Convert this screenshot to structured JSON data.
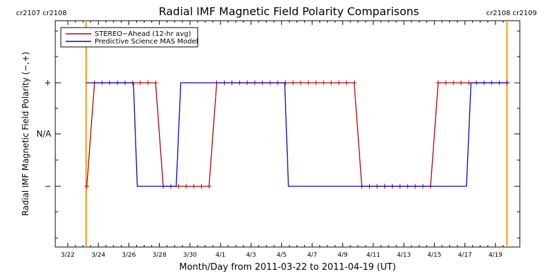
{
  "chart_data": {
    "type": "line",
    "title": "Radial IMF Magnetic Field Polarity Comparisons",
    "xlabel": "Month/Day from 2011-03-22 to 2011-04-19 (UT)",
    "ylabel": "Radial IMF Magnetic Field Polarity (−,+)",
    "x_range_days": [
      0,
      28.5
    ],
    "x_ticks": [
      {
        "day": 0,
        "label": "3/22"
      },
      {
        "day": 2,
        "label": "3/24"
      },
      {
        "day": 4,
        "label": "3/26"
      },
      {
        "day": 6,
        "label": "3/28"
      },
      {
        "day": 8,
        "label": "3/30"
      },
      {
        "day": 10,
        "label": "4/1"
      },
      {
        "day": 12,
        "label": "4/3"
      },
      {
        "day": 14,
        "label": "4/5"
      },
      {
        "day": 16,
        "label": "4/7"
      },
      {
        "day": 18,
        "label": "4/9"
      },
      {
        "day": 20,
        "label": "4/11"
      },
      {
        "day": 22,
        "label": "4/13"
      },
      {
        "day": 24,
        "label": "4/15"
      },
      {
        "day": 26,
        "label": "4/17"
      },
      {
        "day": 28,
        "label": "4/19"
      }
    ],
    "y_range": [
      -2,
      2
    ],
    "y_ticks": [
      {
        "value": 1,
        "label": "+"
      },
      {
        "value": 0,
        "label": "N/A"
      },
      {
        "value": -1,
        "label": "−"
      }
    ],
    "carrington_markers": [
      {
        "day": 1.2,
        "labels": [
          "cr2107",
          "cr2108"
        ],
        "color": "#FF9900"
      },
      {
        "day": 28.75,
        "labels": [
          "cr2108",
          "cr2109"
        ],
        "color": "#FF9900"
      }
    ],
    "legend_position": "top-left",
    "series": [
      {
        "name": "STEREO−Ahead (12-hr avg)",
        "color": "#B00000",
        "markers": "plus",
        "x": [
          1.25,
          1.75,
          2.25,
          2.75,
          3.25,
          3.75,
          4.25,
          4.75,
          5.25,
          5.75,
          6.25,
          6.75,
          7.25,
          7.75,
          8.25,
          8.75,
          9.25,
          9.75,
          10.25,
          10.75,
          11.25,
          11.75,
          12.25,
          12.75,
          13.25,
          13.75,
          14.25,
          14.75,
          15.25,
          15.75,
          16.25,
          16.75,
          17.25,
          17.75,
          18.25,
          18.75,
          19.25,
          19.75,
          20.25,
          20.75,
          21.25,
          21.75,
          22.25,
          22.75,
          23.25,
          23.75,
          24.25,
          24.75,
          25.25,
          25.75,
          26.25,
          26.75,
          27.25,
          27.75,
          28.25,
          28.75
        ],
        "y": [
          -1,
          1,
          1,
          1,
          1,
          1,
          1,
          1,
          1,
          1,
          -1,
          -1,
          -1,
          -1,
          -1,
          -1,
          -1,
          1,
          1,
          1,
          1,
          1,
          1,
          1,
          1,
          1,
          1,
          1,
          1,
          1,
          1,
          1,
          1,
          1,
          1,
          1,
          -1,
          -1,
          -1,
          -1,
          -1,
          -1,
          -1,
          -1,
          -1,
          -1,
          1,
          1,
          1,
          1,
          1,
          1,
          1,
          1,
          1,
          1
        ]
      },
      {
        "name": "Predictive Science MAS Model",
        "color": "#0000CC",
        "x": [
          1.2,
          1.45,
          4.3,
          4.55,
          7.1,
          7.4,
          14.2,
          14.45,
          26.1,
          26.4,
          28.9
        ],
        "y": [
          1,
          1,
          1,
          -1,
          -1,
          1,
          1,
          -1,
          -1,
          1,
          1
        ]
      }
    ]
  }
}
